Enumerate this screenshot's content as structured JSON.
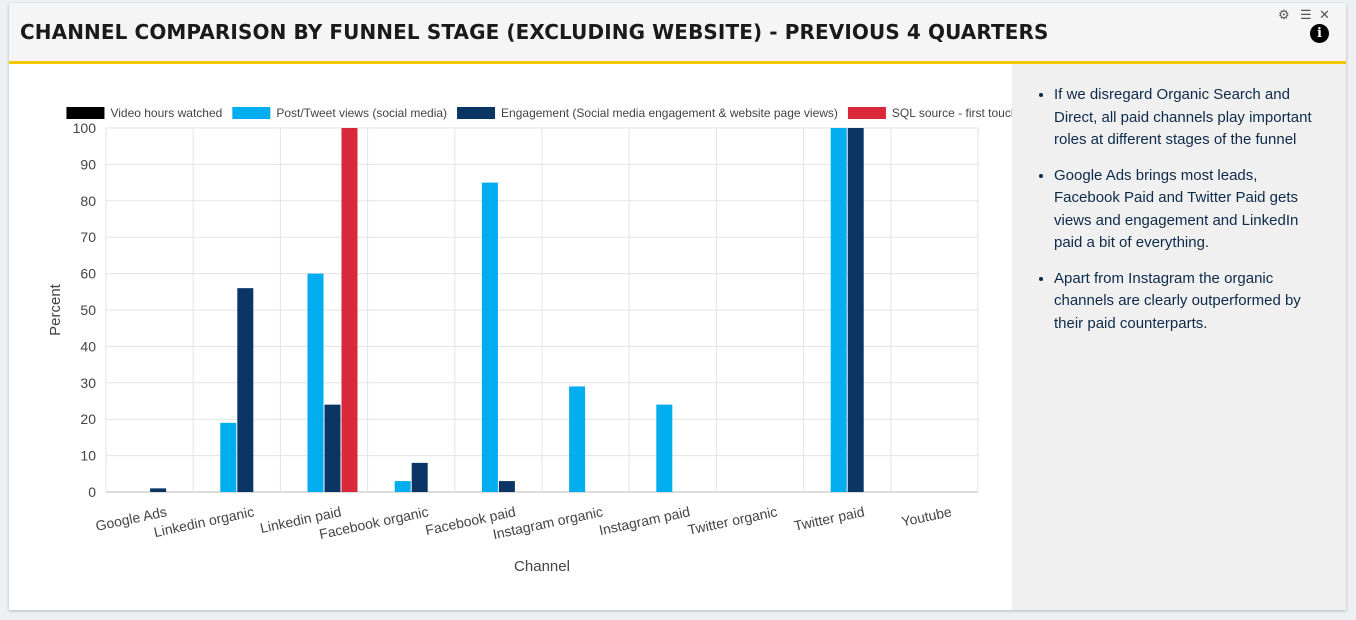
{
  "header": {
    "title": "CHANNEL COMPARISON BY FUNNEL STAGE (EXCLUDING WEBSITE) - PREVIOUS 4 QUARTERS",
    "icons": [
      "gear-icon",
      "menu-icon",
      "close-icon",
      "info-icon"
    ],
    "info_glyph": "i"
  },
  "notes": [
    "If we disregard Organic Search and Direct, all paid channels play important roles at different stages of the funnel",
    "Google Ads brings most leads, Facebook Paid and Twitter Paid gets views and engagement and LinkedIn paid a bit of everything.",
    "Apart from Instagram the organic channels are clearly outperformed by their paid counterparts."
  ],
  "chart_data": {
    "type": "bar",
    "xlabel": "Channel",
    "ylabel": "Percent",
    "ylim": [
      0,
      100
    ],
    "yticks": [
      0,
      10,
      20,
      30,
      40,
      50,
      60,
      70,
      80,
      90,
      100
    ],
    "grid": true,
    "legend_position": "top",
    "categories": [
      "Google Ads",
      "Linkedin organic",
      "Linkedin paid",
      "Facebook organic",
      "Facebook paid",
      "Instagram organic",
      "Instagram paid",
      "Twitter organic",
      "Twitter paid",
      "Youtube"
    ],
    "series": [
      {
        "name": "Video hours watched",
        "color": "#000000",
        "values": [
          0,
          0,
          0,
          0,
          0,
          0,
          0,
          0,
          0,
          0
        ]
      },
      {
        "name": "Post/Tweet views (social media)",
        "color": "#00aeef",
        "values": [
          0,
          19,
          60,
          3,
          85,
          29,
          24,
          0,
          100,
          0
        ]
      },
      {
        "name": "Engagement (Social media engagement & website page views)",
        "color": "#0b3564",
        "values": [
          1,
          56,
          24,
          8,
          3,
          0,
          0,
          0,
          100,
          0
        ]
      },
      {
        "name": "SQL source - first touch",
        "color": "#d8283a",
        "values": [
          0,
          0,
          100,
          0,
          0,
          0,
          0,
          0,
          0,
          0
        ]
      }
    ]
  }
}
